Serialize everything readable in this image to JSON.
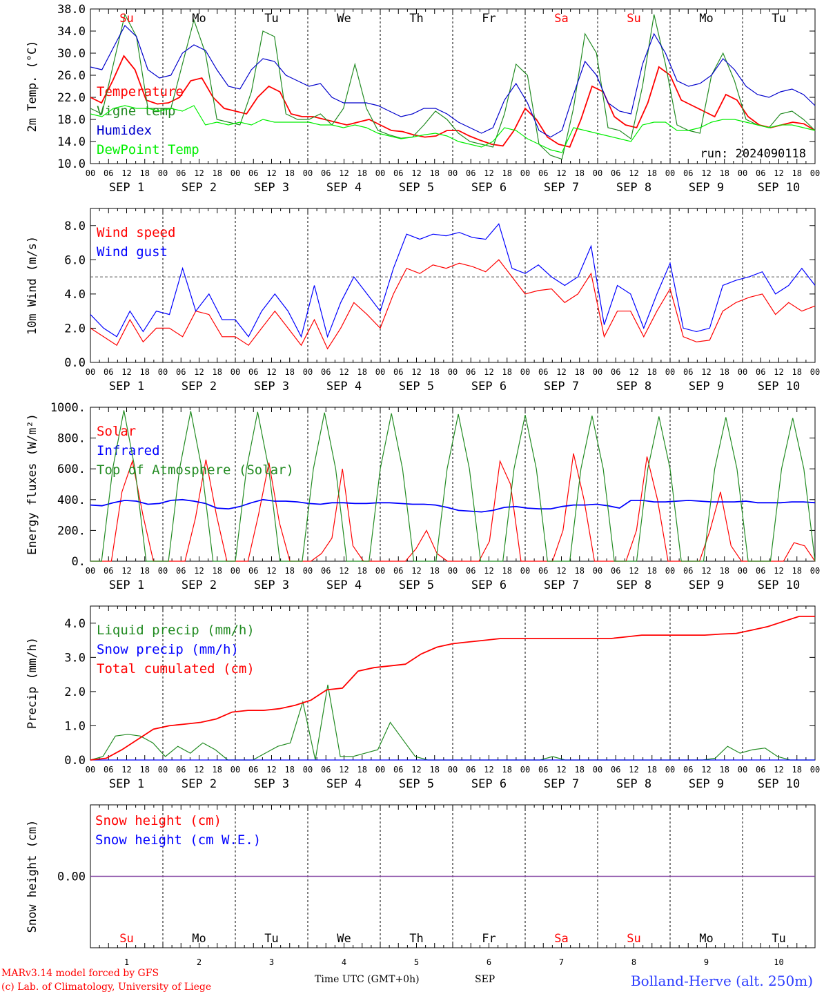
{
  "run_label": "run: 2024090118",
  "time_axis": {
    "hour_ticks": [
      "00",
      "06",
      "12",
      "18"
    ],
    "dates": [
      "SEP  1",
      "SEP  2",
      "SEP  3",
      "SEP  4",
      "SEP  5",
      "SEP  6",
      "SEP  7",
      "SEP  8",
      "SEP  9",
      "SEP 10"
    ],
    "day_numbers": [
      "1",
      "2",
      "3",
      "4",
      "5",
      "6",
      "7",
      "8",
      "9",
      "10"
    ],
    "weekdays": [
      "Su",
      "Mo",
      "Tu",
      "We",
      "Th",
      "Fr",
      "Sa",
      "Su",
      "Mo",
      "Tu"
    ],
    "weekend_color": "#ff0000",
    "xlabel": "Time UTC (GMT+0h)",
    "month": "SEP"
  },
  "footer": {
    "model": "MARv3.14 model forced by GFS",
    "copyright": "(c) Lab. of Climatology, University of Liege",
    "location": "Bolland-Herve (alt. 250m)"
  },
  "chart_data": [
    {
      "type": "line",
      "ylabel": "2m Temp. (°C)",
      "ylim": [
        10,
        38
      ],
      "yticks": [
        "10.0",
        "14.0",
        "18.0",
        "22.0",
        "26.0",
        "30.0",
        "34.0",
        "38.0"
      ],
      "x_hours_step": 6,
      "series": [
        {
          "name": "Temperature",
          "color": "#ff0000",
          "values": [
            22,
            21,
            25,
            29.5,
            27,
            21.5,
            20.8,
            21,
            22,
            25,
            25.5,
            22,
            20,
            19.5,
            19,
            22,
            24,
            23,
            19,
            18.5,
            18.5,
            18,
            17.5,
            17,
            17.5,
            18,
            17,
            16,
            15.8,
            15.2,
            14.8,
            15,
            16,
            16,
            15,
            14.2,
            13.5,
            13.2,
            16,
            20,
            18,
            14.8,
            13.5,
            13,
            18,
            24,
            23,
            18.5,
            17,
            16.5,
            21,
            27.5,
            26,
            21.5,
            20.5,
            19.5,
            18.5,
            22.5,
            21.5,
            18.5,
            17,
            16.5,
            17,
            17.5,
            17.2,
            16
          ]
        },
        {
          "name": "Vigne temp",
          "color": "#228b22",
          "values": [
            20,
            19,
            28,
            37,
            33,
            20,
            20,
            20,
            28,
            36,
            30,
            18,
            17.5,
            17,
            23,
            34,
            33,
            19,
            18,
            18,
            19,
            17,
            20,
            28,
            20,
            16,
            15.2,
            14.6,
            14.8,
            17,
            19.5,
            18,
            15.5,
            14,
            13.5,
            13,
            19,
            28,
            26,
            13.5,
            11.5,
            10.8,
            20,
            33.5,
            30,
            16.5,
            16,
            14.5,
            24,
            37,
            28,
            17,
            16,
            15.5,
            26,
            30,
            25,
            18,
            17,
            16.5,
            19,
            19.5,
            18,
            16
          ]
        },
        {
          "name": "Humidex",
          "color": "#0000cc",
          "values": [
            27.5,
            27,
            31,
            35,
            33,
            27,
            25.5,
            26,
            30,
            31.5,
            30.5,
            27,
            24,
            23.5,
            27,
            29,
            28.5,
            26,
            25,
            24,
            24.5,
            22,
            21,
            21,
            21,
            20.5,
            19.5,
            18.5,
            19,
            20,
            20,
            19,
            17.5,
            16.5,
            15.5,
            16.5,
            21.5,
            24.5,
            21,
            16,
            14.8,
            16,
            22.5,
            28.5,
            26,
            21,
            19.5,
            19,
            28,
            33.5,
            30,
            25,
            24,
            24.5,
            26,
            29,
            27,
            24,
            22.5,
            22,
            23,
            23.5,
            22.5,
            20.5
          ]
        },
        {
          "name": "DewPoint Temp",
          "color": "#00ee00",
          "values": [
            19,
            18.5,
            20,
            20.5,
            20,
            20,
            19.5,
            20,
            19.5,
            20.5,
            17,
            17.5,
            17,
            17.5,
            17,
            18,
            17.5,
            17.5,
            17.5,
            17.5,
            17,
            17,
            16.5,
            17,
            16.5,
            15.5,
            15,
            14.5,
            14.8,
            15.2,
            15.5,
            15,
            14,
            13.5,
            13,
            14,
            16.5,
            16,
            14.5,
            13.5,
            12.5,
            12,
            16.5,
            16,
            15.5,
            15,
            14.5,
            14,
            17,
            17.5,
            17.5,
            16,
            16,
            16.5,
            17.5,
            18,
            18,
            17.5,
            17,
            16.5,
            17,
            17,
            16.5,
            16
          ]
        }
      ]
    },
    {
      "type": "line",
      "ylabel": "10m Wind (m/s)",
      "ylim": [
        0,
        9
      ],
      "yticks": [
        "0.0",
        "2.0",
        "4.0",
        "6.0",
        "8.0"
      ],
      "reference_line": 5,
      "x_hours_step": 6,
      "series": [
        {
          "name": "Wind speed",
          "color": "#ff0000",
          "values": [
            2,
            1.5,
            1,
            2.5,
            1.2,
            2,
            2,
            1.5,
            3,
            2.8,
            1.5,
            1.5,
            1,
            2,
            3,
            2,
            1,
            2.5,
            0.8,
            2,
            3.5,
            2.8,
            2,
            4,
            5.5,
            5.2,
            5.7,
            5.5,
            5.8,
            5.6,
            5.3,
            6,
            5,
            4,
            4.2,
            4.3,
            3.5,
            4,
            5.2,
            1.5,
            3,
            3,
            1.5,
            3,
            4.3,
            1.5,
            1.2,
            1.3,
            3,
            3.5,
            3.8,
            4,
            2.8,
            3.5,
            3,
            3.3
          ]
        },
        {
          "name": "Wind gust",
          "color": "#0000ff",
          "values": [
            2.8,
            2,
            1.5,
            3,
            1.8,
            3,
            2.8,
            5.5,
            3,
            4,
            2.5,
            2.5,
            1.5,
            3,
            4,
            3,
            1.5,
            4.5,
            1.5,
            3.5,
            5,
            4,
            3,
            5.5,
            7.5,
            7.2,
            7.5,
            7.4,
            7.6,
            7.3,
            7.2,
            8.1,
            5.5,
            5.2,
            5.7,
            5,
            4.5,
            5,
            6.8,
            2.2,
            4.5,
            4,
            2,
            4,
            5.8,
            2,
            1.8,
            2,
            4.5,
            4.8,
            5,
            5.3,
            4,
            4.5,
            5.5,
            4.5
          ]
        }
      ]
    },
    {
      "type": "line",
      "ylabel": "Energy fluxes (W/m²)",
      "ylim": [
        0,
        1000
      ],
      "yticks": [
        "0.",
        "200.",
        "400.",
        "600.",
        "800.",
        "1000."
      ],
      "x_hours_step": 6,
      "series": [
        {
          "name": "Solar",
          "color": "#ff0000",
          "values": [
            0,
            0,
            0,
            450,
            650,
            300,
            0,
            0,
            0,
            0,
            280,
            660,
            300,
            0,
            0,
            0,
            300,
            640,
            250,
            0,
            0,
            0,
            50,
            150,
            600,
            100,
            0,
            0,
            0,
            0,
            0,
            80,
            200,
            50,
            0,
            0,
            0,
            0,
            130,
            650,
            500,
            0,
            0,
            0,
            0,
            200,
            700,
            400,
            0,
            0,
            0,
            0,
            200,
            680,
            400,
            0,
            0,
            0,
            0,
            200,
            450,
            100,
            0,
            0,
            0,
            0,
            0,
            120,
            100,
            0
          ]
        },
        {
          "name": "Infrared",
          "color": "#0000ff",
          "values": [
            365,
            360,
            380,
            395,
            390,
            370,
            375,
            395,
            400,
            390,
            375,
            345,
            340,
            355,
            380,
            400,
            390,
            390,
            385,
            375,
            370,
            380,
            380,
            375,
            375,
            380,
            380,
            375,
            370,
            370,
            365,
            350,
            330,
            325,
            320,
            330,
            350,
            355,
            345,
            340,
            340,
            355,
            365,
            365,
            370,
            360,
            345,
            395,
            395,
            385,
            385,
            390,
            395,
            390,
            385,
            385,
            385,
            390,
            380,
            380,
            380,
            385,
            385,
            380
          ]
        },
        {
          "name": "Top of Atmosphere (Solar)",
          "color": "#228b22",
          "values": [
            0,
            0,
            600,
            980,
            600,
            0,
            0,
            0,
            600,
            975,
            600,
            0,
            0,
            0,
            600,
            970,
            600,
            0,
            0,
            0,
            600,
            965,
            600,
            0,
            0,
            0,
            600,
            960,
            600,
            0,
            0,
            0,
            600,
            955,
            600,
            0,
            0,
            0,
            600,
            950,
            600,
            0,
            0,
            0,
            600,
            945,
            600,
            0,
            0,
            0,
            600,
            940,
            600,
            0,
            0,
            0,
            600,
            935,
            600,
            0,
            0,
            0,
            600,
            930,
            600,
            0
          ]
        }
      ]
    },
    {
      "type": "line",
      "ylabel": "Precip (mm/h)",
      "ylim": [
        0,
        4.5
      ],
      "yticks": [
        "0.0",
        "1.0",
        "2.0",
        "3.0",
        "4.0"
      ],
      "x_hours_step": 6,
      "series": [
        {
          "name": "Liquid precip (mm/h)",
          "color": "#228b22",
          "values": [
            0,
            0.1,
            0.7,
            0.75,
            0.7,
            0.5,
            0.1,
            0.4,
            0.2,
            0.5,
            0.3,
            0,
            0,
            0,
            0.2,
            0.4,
            0.5,
            1.7,
            0,
            2.2,
            0.1,
            0.1,
            0.2,
            0.3,
            1.1,
            0.6,
            0.1,
            0,
            0,
            0,
            0,
            0,
            0,
            0,
            0,
            0,
            0,
            0.1,
            0,
            0,
            0,
            0,
            0,
            0,
            0,
            0,
            0,
            0,
            0,
            0,
            0.05,
            0.4,
            0.2,
            0.3,
            0.35,
            0.1,
            0,
            0,
            0
          ]
        },
        {
          "name": "Snow precip (mm/h)",
          "color": "#0000ff",
          "values": [
            0,
            0,
            0,
            0,
            0,
            0,
            0,
            0,
            0,
            0,
            0,
            0
          ]
        },
        {
          "name": "Total cumulated (cm)",
          "color": "#ff0000",
          "values": [
            0,
            0.05,
            0.3,
            0.6,
            0.9,
            1.0,
            1.05,
            1.1,
            1.2,
            1.4,
            1.45,
            1.45,
            1.5,
            1.6,
            1.75,
            2.05,
            2.1,
            2.6,
            2.7,
            2.75,
            2.8,
            3.1,
            3.3,
            3.4,
            3.45,
            3.5,
            3.55,
            3.55,
            3.55,
            3.55,
            3.55,
            3.55,
            3.55,
            3.55,
            3.6,
            3.65,
            3.65,
            3.65,
            3.65,
            3.65,
            3.68,
            3.7,
            3.8,
            3.9,
            4.05,
            4.2,
            4.2
          ]
        }
      ]
    },
    {
      "type": "line",
      "ylabel": "Snow height (cm)",
      "yticks": [
        "0.00"
      ],
      "x_hours_step": 6,
      "series": [
        {
          "name": "Snow height (cm)",
          "color": "#ff0000",
          "values": [
            0,
            0
          ]
        },
        {
          "name": "Snow height (cm W.E.)",
          "color": "#0000ff",
          "values": [
            0,
            0
          ]
        }
      ]
    }
  ]
}
